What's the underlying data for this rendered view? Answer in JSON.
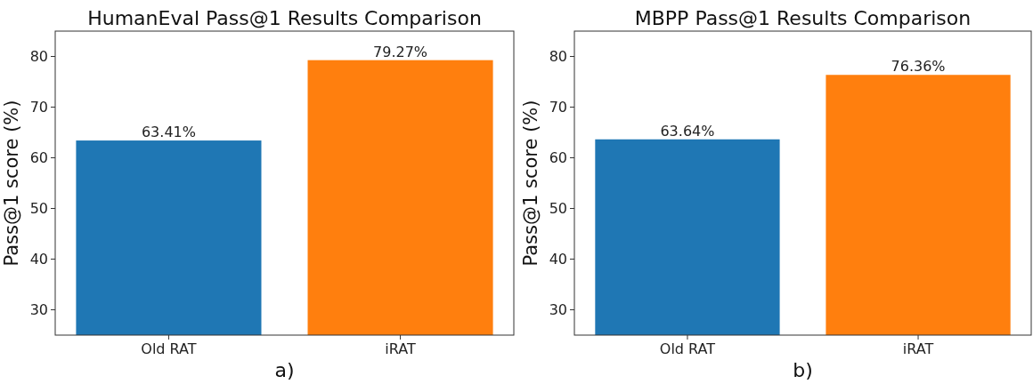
{
  "chart_data": [
    {
      "type": "bar",
      "title": "HumanEval Pass@1 Results Comparison",
      "xlabel": "a)",
      "ylabel": "Pass@1 score (%)",
      "categories": [
        "Old RAT",
        "iRAT"
      ],
      "values": [
        63.41,
        79.27
      ],
      "colors": [
        "#1f77b4",
        "#ff7f0e"
      ],
      "value_labels": [
        "63.41%",
        "79.27%"
      ],
      "ylim": [
        25,
        85
      ],
      "yticks": [
        30,
        40,
        50,
        60,
        70,
        80
      ],
      "grid": false
    },
    {
      "type": "bar",
      "title": "MBPP Pass@1 Results Comparison",
      "xlabel": "b)",
      "ylabel": "Pass@1 score (%)",
      "categories": [
        "Old RAT",
        "iRAT"
      ],
      "values": [
        63.64,
        76.36
      ],
      "colors": [
        "#1f77b4",
        "#ff7f0e"
      ],
      "value_labels": [
        "63.64%",
        "76.36%"
      ],
      "ylim": [
        25,
        85
      ],
      "yticks": [
        30,
        40,
        50,
        60,
        70,
        80
      ],
      "grid": false
    }
  ]
}
